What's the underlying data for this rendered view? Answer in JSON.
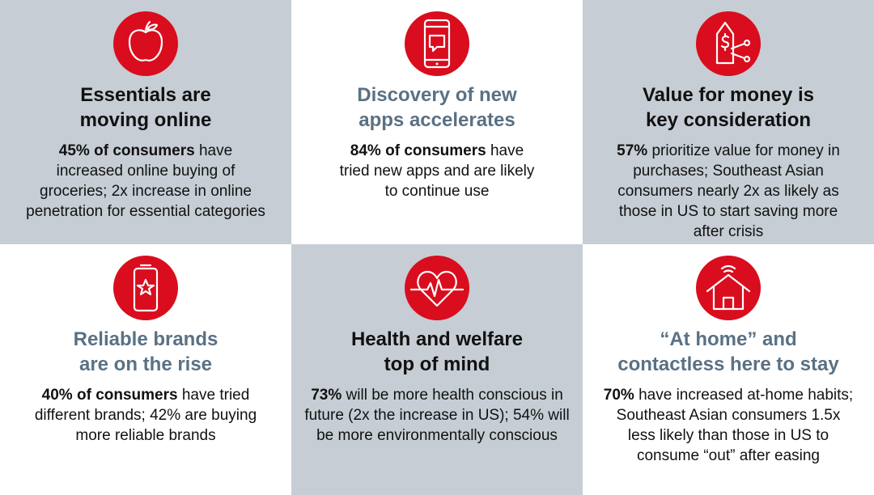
{
  "cards": [
    {
      "title": [
        "Essentials are",
        "moving online"
      ],
      "lead": "45% of consumers",
      "body": "have increased online buying of groceries; 2x increase in online penetration for essential categories"
    },
    {
      "title": [
        "Discovery of new",
        "apps accelerates"
      ],
      "lead": "84% of consumers",
      "body": "have tried new apps and are likely to continue use"
    },
    {
      "title": [
        "Value for money is",
        "key consideration"
      ],
      "lead": "57%",
      "body": "prioritize value for money in purchases; Southeast Asian consumers nearly 2x as likely as those in US to start saving more after crisis"
    },
    {
      "title": [
        "Reliable brands",
        "are on the rise"
      ],
      "lead": "40% of consumers",
      "body": "have tried different brands; 42% are buying more reliable brands"
    },
    {
      "title": [
        "Health and welfare",
        "top of mind"
      ],
      "lead": "73%",
      "body": "will be more health conscious in future (2x the increase in US); 54% will be more environmentally conscious"
    },
    {
      "title": [
        "“At home” and",
        "contactless here to stay"
      ],
      "lead": "70%",
      "body": "have increased at-home habits; Southeast Asian consumers 1.5x less likely than those in US to consume “out” after easing"
    }
  ]
}
